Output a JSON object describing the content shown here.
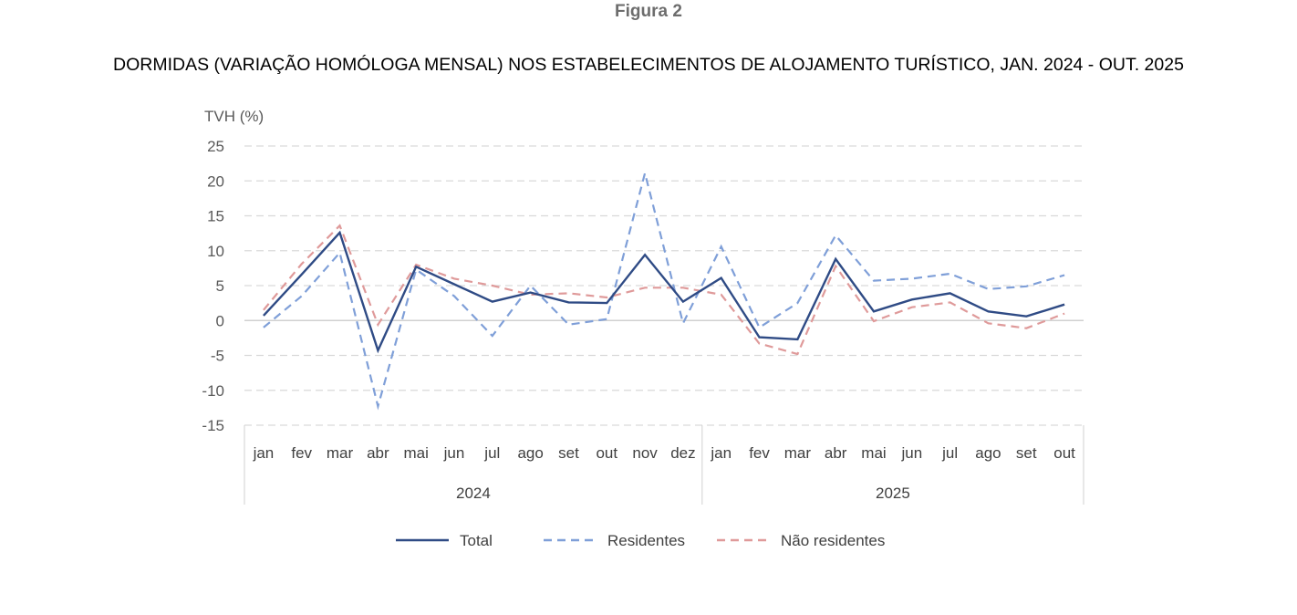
{
  "figure_label": "Figura 2",
  "chart_data": {
    "type": "line",
    "title": "DORMIDAS (VARIAÇÃO HOMÓLOGA MENSAL) NOS ESTABELECIMENTOS DE ALOJAMENTO TURÍSTICO, JAN. 2024 - OUT. 2025",
    "ylabel": "TVH (%)",
    "ylim": [
      -15,
      25
    ],
    "yticks": [
      25,
      20,
      15,
      10,
      5,
      0,
      -5,
      -10,
      -15
    ],
    "grid": true,
    "legend_position": "bottom",
    "categories": [
      "jan",
      "fev",
      "mar",
      "abr",
      "mai",
      "jun",
      "jul",
      "ago",
      "set",
      "out",
      "nov",
      "dez",
      "jan",
      "fev",
      "mar",
      "abr",
      "mai",
      "jun",
      "jul",
      "ago",
      "set",
      "out"
    ],
    "groups": [
      {
        "label": "2024",
        "count": 12
      },
      {
        "label": "2025",
        "count": 10
      }
    ],
    "series": [
      {
        "name": "Total",
        "color": "#2f4b85",
        "dashed": false,
        "values": [
          0.7,
          6.6,
          12.6,
          -4.3,
          7.7,
          5.2,
          2.7,
          4.0,
          2.6,
          2.5,
          9.4,
          2.7,
          6.1,
          -2.4,
          -2.7,
          8.8,
          1.3,
          3.0,
          3.9,
          1.3,
          0.6,
          2.3
        ]
      },
      {
        "name": "Residentes",
        "color": "#7f9fd8",
        "dashed": true,
        "values": [
          -1.0,
          3.5,
          9.7,
          -12.3,
          7.3,
          3.5,
          -2.2,
          5.0,
          -0.6,
          0.2,
          21.1,
          -0.4,
          10.6,
          -1.0,
          2.5,
          12.2,
          5.7,
          6.0,
          6.7,
          4.5,
          4.9,
          6.5
        ]
      },
      {
        "name": "Não residentes",
        "color": "#df9a9a",
        "dashed": true,
        "values": [
          1.5,
          8.1,
          13.6,
          -0.6,
          8.0,
          6.0,
          5.0,
          3.7,
          3.9,
          3.3,
          4.7,
          4.7,
          3.7,
          -3.3,
          -4.8,
          7.8,
          -0.1,
          1.9,
          2.6,
          -0.4,
          -1.1,
          1.0
        ]
      }
    ]
  }
}
